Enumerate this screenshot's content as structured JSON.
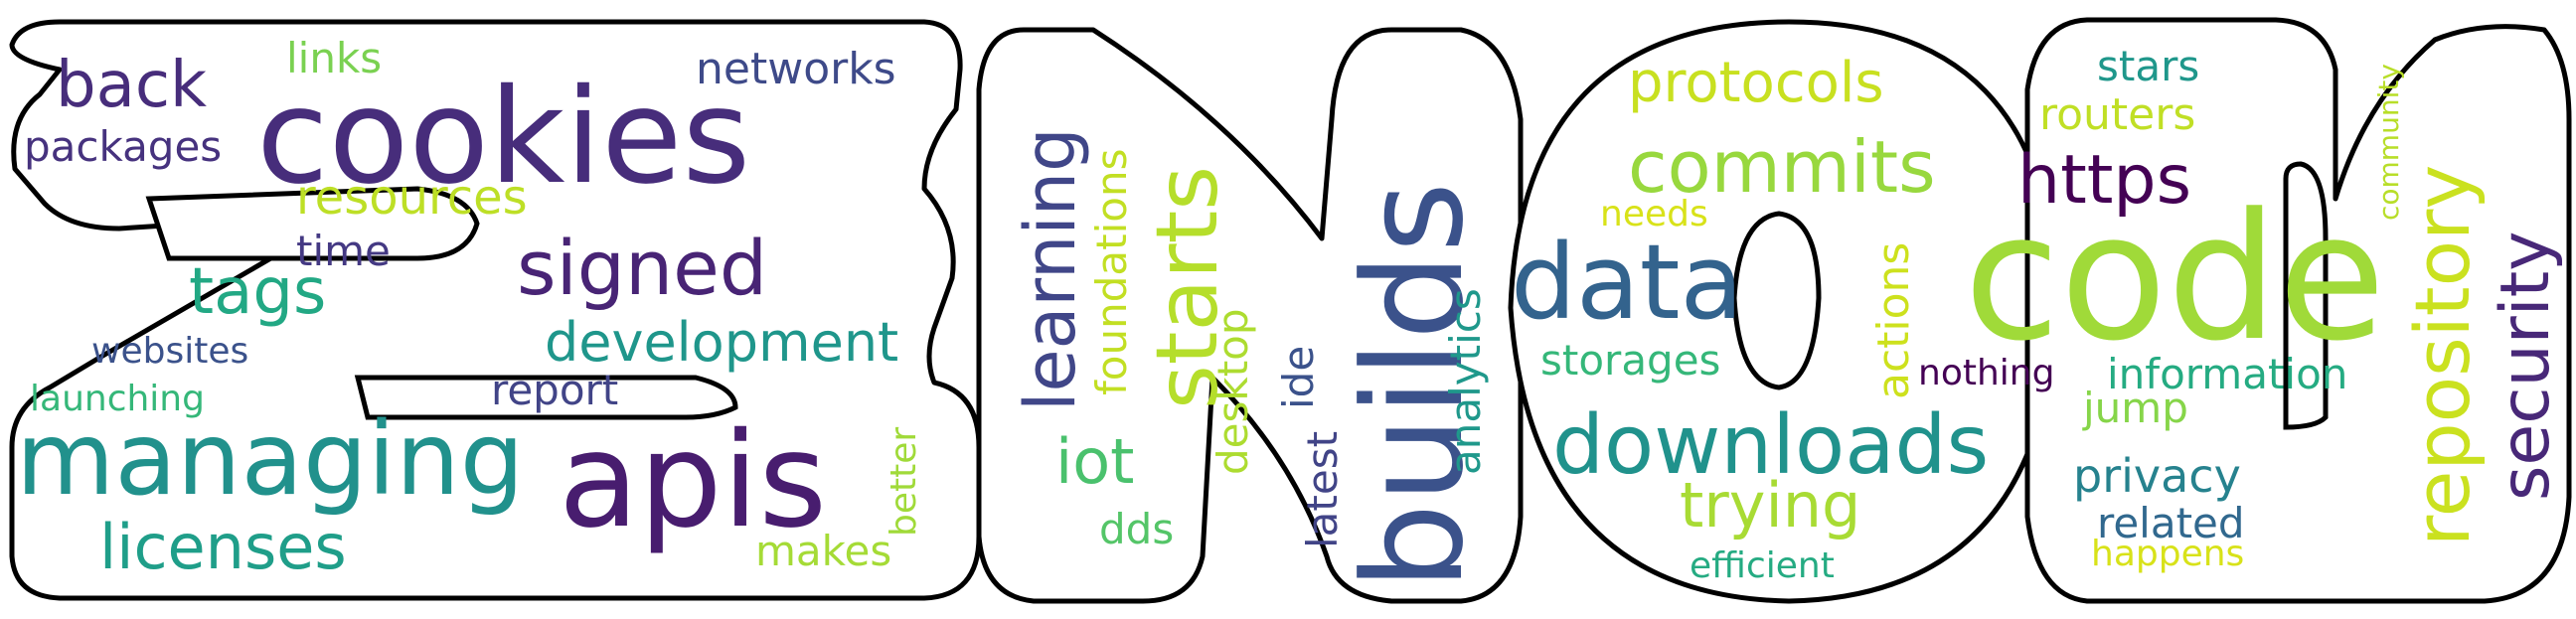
{
  "words": {
    "cookies": {
      "text": "cookies",
      "color": "#472d7b"
    },
    "back": {
      "text": "back",
      "color": "#472d7b"
    },
    "links": {
      "text": "links",
      "color": "#7ad151"
    },
    "networks": {
      "text": "networks",
      "color": "#3e4a89"
    },
    "packages": {
      "text": "packages",
      "color": "#46327e"
    },
    "resources": {
      "text": "resources",
      "color": "#bddf26"
    },
    "signed": {
      "text": "signed",
      "color": "#482475"
    },
    "time": {
      "text": "time",
      "color": "#443983"
    },
    "tags": {
      "text": "tags",
      "color": "#22a884"
    },
    "development": {
      "text": "development",
      "color": "#1f968b"
    },
    "websites": {
      "text": "websites",
      "color": "#3b528b"
    },
    "launching": {
      "text": "launching",
      "color": "#35b779"
    },
    "report": {
      "text": "report",
      "color": "#414487"
    },
    "managing": {
      "text": "managing",
      "color": "#21918c"
    },
    "apis": {
      "text": "apis",
      "color": "#481d6f"
    },
    "better": {
      "text": "better",
      "color": "#a0da39"
    },
    "licenses": {
      "text": "licenses",
      "color": "#1f9e89"
    },
    "makes": {
      "text": "makes",
      "color": "#a5db36"
    },
    "learning": {
      "text": "learning",
      "color": "#404688"
    },
    "foundations": {
      "text": "foundations",
      "color": "#c2df23"
    },
    "starts": {
      "text": "starts",
      "color": "#b5de2b"
    },
    "iot": {
      "text": "iot",
      "color": "#4ac16d"
    },
    "dds": {
      "text": "dds",
      "color": "#54c568"
    },
    "desktop": {
      "text": "desktop",
      "color": "#addc30"
    },
    "ide": {
      "text": "ide",
      "color": "#3b528b"
    },
    "latest": {
      "text": "latest",
      "color": "#414487"
    },
    "builds": {
      "text": "builds",
      "color": "#3b528b"
    },
    "analytics": {
      "text": "analytics",
      "color": "#1f988b"
    },
    "data": {
      "text": "data",
      "color": "#33638d"
    },
    "protocols": {
      "text": "protocols",
      "color": "#c8e020"
    },
    "commits": {
      "text": "commits",
      "color": "#98d83e"
    },
    "needs": {
      "text": "needs",
      "color": "#d8e219"
    },
    "storages": {
      "text": "storages",
      "color": "#35b779"
    },
    "downloads": {
      "text": "downloads",
      "color": "#20928c"
    },
    "trying": {
      "text": "trying",
      "color": "#a8db34"
    },
    "efficient": {
      "text": "efficient",
      "color": "#25ab82"
    },
    "actions": {
      "text": "actions",
      "color": "#cde11d"
    },
    "nothing": {
      "text": "nothing",
      "color": "#440154"
    },
    "stars": {
      "text": "stars",
      "color": "#1f978b"
    },
    "routers": {
      "text": "routers",
      "color": "#c0df25"
    },
    "https": {
      "text": "https",
      "color": "#440154"
    },
    "code": {
      "text": "code",
      "color": "#a0da39"
    },
    "information": {
      "text": "information",
      "color": "#25ab82"
    },
    "jump": {
      "text": "jump",
      "color": "#86d549"
    },
    "privacy": {
      "text": "privacy",
      "color": "#26828e"
    },
    "related": {
      "text": "related",
      "color": "#31688e"
    },
    "happens": {
      "text": "happens",
      "color": "#d8e219"
    },
    "repository": {
      "text": "repository",
      "color": "#cae11f"
    },
    "security": {
      "text": "security",
      "color": "#482878"
    },
    "community": {
      "text": "community",
      "color": "#b8de29"
    }
  }
}
